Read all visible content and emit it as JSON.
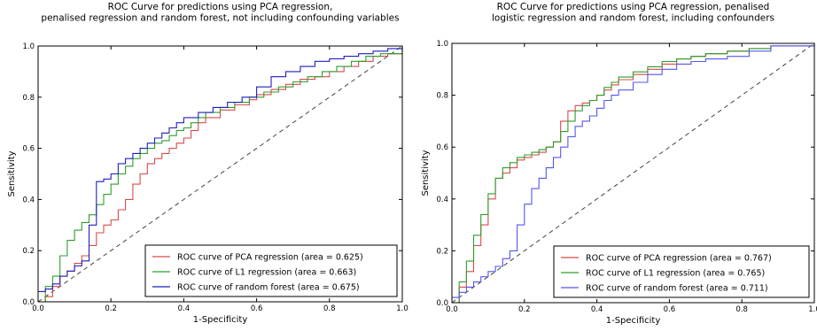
{
  "colors": {
    "pca": "#d94a4a",
    "l1": "#2e9e2e",
    "rf_left": "#1f1fbf",
    "rf_right": "#5555ee",
    "diagonal": "#444444"
  },
  "chart_data": [
    {
      "type": "line",
      "title": [
        "ROC Curve for predictions using PCA regression,",
        "penalised regression and random forest, not including confounding variables"
      ],
      "xlabel": "1-Specificity",
      "ylabel": "Sensitivity",
      "xlim": [
        0,
        1
      ],
      "ylim": [
        0,
        1
      ],
      "xticks": [
        "0.0",
        "0.2",
        "0.4",
        "0.6",
        "0.8",
        "1.0"
      ],
      "yticks": [
        "0.0",
        "0.2",
        "0.4",
        "0.6",
        "0.8",
        "1.0"
      ],
      "grid": false,
      "legend_position": "bottom-right",
      "diagonal": true,
      "series": [
        {
          "name": "ROC curve of PCA regression (area = 0.625)",
          "color_key": "pca",
          "points": [
            [
              0,
              0
            ],
            [
              0.02,
              0.02
            ],
            [
              0.04,
              0.06
            ],
            [
              0.06,
              0.1
            ],
            [
              0.08,
              0.12
            ],
            [
              0.1,
              0.15
            ],
            [
              0.12,
              0.18
            ],
            [
              0.14,
              0.22
            ],
            [
              0.16,
              0.27
            ],
            [
              0.18,
              0.3
            ],
            [
              0.2,
              0.32
            ],
            [
              0.22,
              0.36
            ],
            [
              0.24,
              0.4
            ],
            [
              0.26,
              0.46
            ],
            [
              0.28,
              0.5
            ],
            [
              0.3,
              0.54
            ],
            [
              0.32,
              0.56
            ],
            [
              0.34,
              0.58
            ],
            [
              0.36,
              0.6
            ],
            [
              0.38,
              0.62
            ],
            [
              0.4,
              0.64
            ],
            [
              0.42,
              0.67
            ],
            [
              0.44,
              0.7
            ],
            [
              0.46,
              0.72
            ],
            [
              0.5,
              0.75
            ],
            [
              0.54,
              0.77
            ],
            [
              0.58,
              0.79
            ],
            [
              0.6,
              0.81
            ],
            [
              0.64,
              0.83
            ],
            [
              0.68,
              0.85
            ],
            [
              0.72,
              0.87
            ],
            [
              0.76,
              0.88
            ],
            [
              0.8,
              0.9
            ],
            [
              0.84,
              0.92
            ],
            [
              0.88,
              0.94
            ],
            [
              0.92,
              0.96
            ],
            [
              0.96,
              0.97
            ],
            [
              1,
              1
            ]
          ]
        },
        {
          "name": "ROC curve of L1 regression (area = 0.663)",
          "color_key": "l1",
          "points": [
            [
              0,
              0
            ],
            [
              0.02,
              0.06
            ],
            [
              0.04,
              0.1
            ],
            [
              0.06,
              0.18
            ],
            [
              0.08,
              0.24
            ],
            [
              0.1,
              0.28
            ],
            [
              0.12,
              0.31
            ],
            [
              0.14,
              0.34
            ],
            [
              0.16,
              0.38
            ],
            [
              0.18,
              0.42
            ],
            [
              0.2,
              0.46
            ],
            [
              0.22,
              0.5
            ],
            [
              0.24,
              0.53
            ],
            [
              0.26,
              0.56
            ],
            [
              0.28,
              0.58
            ],
            [
              0.3,
              0.6
            ],
            [
              0.32,
              0.62
            ],
            [
              0.34,
              0.63
            ],
            [
              0.36,
              0.65
            ],
            [
              0.38,
              0.67
            ],
            [
              0.4,
              0.68
            ],
            [
              0.42,
              0.7
            ],
            [
              0.44,
              0.72
            ],
            [
              0.46,
              0.74
            ],
            [
              0.5,
              0.76
            ],
            [
              0.54,
              0.78
            ],
            [
              0.58,
              0.8
            ],
            [
              0.62,
              0.82
            ],
            [
              0.66,
              0.84
            ],
            [
              0.7,
              0.86
            ],
            [
              0.74,
              0.88
            ],
            [
              0.78,
              0.9
            ],
            [
              0.82,
              0.92
            ],
            [
              0.86,
              0.94
            ],
            [
              0.9,
              0.96
            ],
            [
              0.94,
              0.97
            ],
            [
              1,
              1
            ]
          ]
        },
        {
          "name": "ROC curve of random forest (area = 0.675)",
          "color_key": "rf_left",
          "points": [
            [
              0,
              0.04
            ],
            [
              0.02,
              0.05
            ],
            [
              0.04,
              0.07
            ],
            [
              0.06,
              0.1
            ],
            [
              0.08,
              0.12
            ],
            [
              0.1,
              0.14
            ],
            [
              0.12,
              0.16
            ],
            [
              0.14,
              0.3
            ],
            [
              0.16,
              0.47
            ],
            [
              0.18,
              0.48
            ],
            [
              0.2,
              0.5
            ],
            [
              0.22,
              0.54
            ],
            [
              0.24,
              0.56
            ],
            [
              0.26,
              0.58
            ],
            [
              0.28,
              0.6
            ],
            [
              0.3,
              0.62
            ],
            [
              0.32,
              0.64
            ],
            [
              0.34,
              0.66
            ],
            [
              0.36,
              0.68
            ],
            [
              0.38,
              0.7
            ],
            [
              0.4,
              0.72
            ],
            [
              0.44,
              0.74
            ],
            [
              0.48,
              0.76
            ],
            [
              0.52,
              0.78
            ],
            [
              0.56,
              0.8
            ],
            [
              0.6,
              0.84
            ],
            [
              0.64,
              0.88
            ],
            [
              0.68,
              0.9
            ],
            [
              0.72,
              0.92
            ],
            [
              0.76,
              0.94
            ],
            [
              0.8,
              0.95
            ],
            [
              0.84,
              0.96
            ],
            [
              0.88,
              0.97
            ],
            [
              0.92,
              0.98
            ],
            [
              0.96,
              0.99
            ],
            [
              1,
              1
            ]
          ]
        }
      ]
    },
    {
      "type": "line",
      "title": [
        "ROC Curve for predictions using PCA regression, penalised",
        "logistic regression and random forest, including confounders"
      ],
      "xlabel": "1-Specificity",
      "ylabel": "Sensitivity",
      "xlim": [
        0,
        1
      ],
      "ylim": [
        0,
        1
      ],
      "xticks": [
        "0.0",
        "0.2",
        "0.4",
        "0.6",
        "0.8",
        "1.0"
      ],
      "yticks": [
        "0.0",
        "0.2",
        "0.4",
        "0.6",
        "0.8",
        "1.0"
      ],
      "grid": false,
      "legend_position": "bottom-right",
      "diagonal": true,
      "series": [
        {
          "name": "ROC curve of PCA regression (area = 0.767)",
          "color_key": "pca",
          "points": [
            [
              0,
              0
            ],
            [
              0.02,
              0.06
            ],
            [
              0.04,
              0.12
            ],
            [
              0.06,
              0.22
            ],
            [
              0.08,
              0.3
            ],
            [
              0.1,
              0.4
            ],
            [
              0.12,
              0.48
            ],
            [
              0.14,
              0.5
            ],
            [
              0.16,
              0.52
            ],
            [
              0.18,
              0.55
            ],
            [
              0.2,
              0.56
            ],
            [
              0.22,
              0.57
            ],
            [
              0.24,
              0.58
            ],
            [
              0.26,
              0.6
            ],
            [
              0.28,
              0.62
            ],
            [
              0.3,
              0.7
            ],
            [
              0.32,
              0.74
            ],
            [
              0.34,
              0.76
            ],
            [
              0.36,
              0.77
            ],
            [
              0.38,
              0.78
            ],
            [
              0.4,
              0.8
            ],
            [
              0.42,
              0.82
            ],
            [
              0.44,
              0.84
            ],
            [
              0.46,
              0.86
            ],
            [
              0.5,
              0.88
            ],
            [
              0.54,
              0.9
            ],
            [
              0.58,
              0.92
            ],
            [
              0.62,
              0.94
            ],
            [
              0.66,
              0.95
            ],
            [
              0.7,
              0.96
            ],
            [
              0.76,
              0.97
            ],
            [
              0.82,
              0.98
            ],
            [
              0.88,
              0.99
            ],
            [
              1,
              1
            ]
          ]
        },
        {
          "name": "ROC curve of L1 regression (area = 0.765)",
          "color_key": "l1",
          "points": [
            [
              0,
              0
            ],
            [
              0.02,
              0.08
            ],
            [
              0.04,
              0.16
            ],
            [
              0.06,
              0.26
            ],
            [
              0.08,
              0.34
            ],
            [
              0.1,
              0.42
            ],
            [
              0.12,
              0.48
            ],
            [
              0.14,
              0.52
            ],
            [
              0.16,
              0.54
            ],
            [
              0.18,
              0.56
            ],
            [
              0.2,
              0.57
            ],
            [
              0.22,
              0.58
            ],
            [
              0.24,
              0.59
            ],
            [
              0.26,
              0.6
            ],
            [
              0.28,
              0.62
            ],
            [
              0.3,
              0.66
            ],
            [
              0.32,
              0.7
            ],
            [
              0.34,
              0.74
            ],
            [
              0.36,
              0.76
            ],
            [
              0.38,
              0.78
            ],
            [
              0.4,
              0.8
            ],
            [
              0.42,
              0.83
            ],
            [
              0.44,
              0.85
            ],
            [
              0.46,
              0.87
            ],
            [
              0.5,
              0.89
            ],
            [
              0.54,
              0.91
            ],
            [
              0.58,
              0.93
            ],
            [
              0.62,
              0.94
            ],
            [
              0.66,
              0.95
            ],
            [
              0.7,
              0.96
            ],
            [
              0.76,
              0.97
            ],
            [
              0.82,
              0.98
            ],
            [
              0.88,
              0.99
            ],
            [
              1,
              1
            ]
          ]
        },
        {
          "name": "ROC curve of random forest (area = 0.711)",
          "color_key": "rf_right",
          "points": [
            [
              0,
              0.02
            ],
            [
              0.02,
              0.04
            ],
            [
              0.04,
              0.06
            ],
            [
              0.06,
              0.08
            ],
            [
              0.08,
              0.1
            ],
            [
              0.1,
              0.12
            ],
            [
              0.12,
              0.14
            ],
            [
              0.14,
              0.17
            ],
            [
              0.16,
              0.2
            ],
            [
              0.18,
              0.3
            ],
            [
              0.2,
              0.38
            ],
            [
              0.22,
              0.44
            ],
            [
              0.24,
              0.48
            ],
            [
              0.26,
              0.52
            ],
            [
              0.28,
              0.56
            ],
            [
              0.3,
              0.6
            ],
            [
              0.32,
              0.64
            ],
            [
              0.34,
              0.68
            ],
            [
              0.36,
              0.7
            ],
            [
              0.38,
              0.72
            ],
            [
              0.4,
              0.75
            ],
            [
              0.42,
              0.78
            ],
            [
              0.44,
              0.8
            ],
            [
              0.46,
              0.82
            ],
            [
              0.5,
              0.85
            ],
            [
              0.54,
              0.88
            ],
            [
              0.58,
              0.9
            ],
            [
              0.62,
              0.92
            ],
            [
              0.66,
              0.93
            ],
            [
              0.7,
              0.94
            ],
            [
              0.76,
              0.95
            ],
            [
              0.82,
              0.97
            ],
            [
              0.88,
              0.99
            ],
            [
              1,
              1
            ]
          ]
        }
      ]
    }
  ]
}
